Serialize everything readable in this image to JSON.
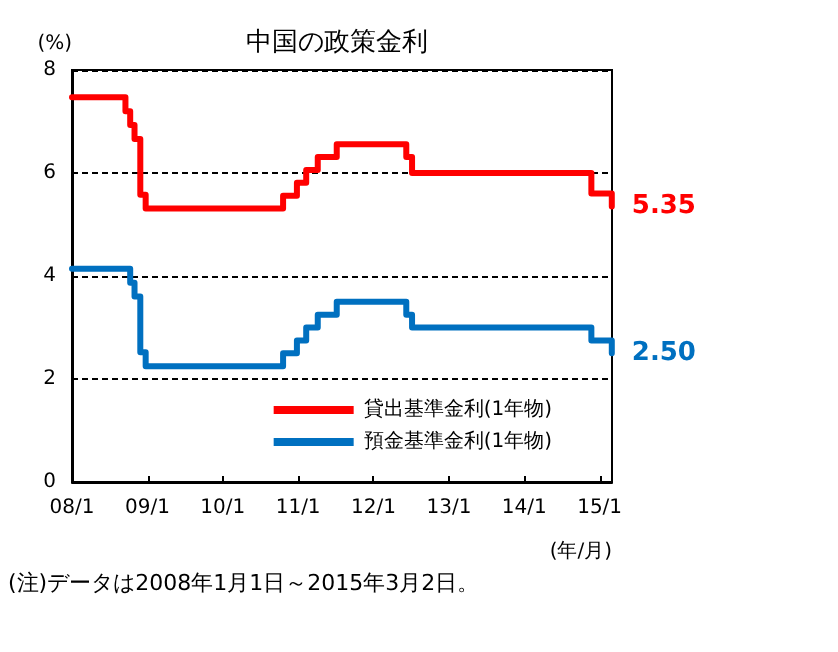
{
  "chart_data": {
    "type": "step",
    "title": "中国の政策金利",
    "ylabel": "(%)",
    "xlabel": "(年/月)",
    "annotations": [
      "(注)データは2008年1月1日～2015年3月2日。"
    ],
    "x": [
      "2008-01-01",
      "2008-09-16",
      "2008-10-09",
      "2008-10-30",
      "2008-11-27",
      "2008-12-23",
      "2010-10-20",
      "2010-12-26",
      "2011-02-09",
      "2011-04-06",
      "2011-07-07",
      "2012-06-08",
      "2012-07-06",
      "2014-11-22",
      "2015-03-01"
    ],
    "series": [
      {
        "name": "貸出基準金利(1年物)",
        "color": "#ff0000",
        "values": [
          7.47,
          7.2,
          6.93,
          6.66,
          5.58,
          5.31,
          5.56,
          5.81,
          6.06,
          6.31,
          6.56,
          6.31,
          6.0,
          5.6,
          5.35
        ],
        "value_labels": [
          null,
          null,
          null,
          null,
          null,
          null,
          null,
          null,
          null,
          null,
          null,
          null,
          null,
          null,
          "5.35"
        ]
      },
      {
        "name": "預金基準金利(1年物)",
        "color": "#0070c0",
        "values": [
          4.14,
          4.14,
          3.87,
          3.6,
          2.52,
          2.25,
          2.5,
          2.75,
          3.0,
          3.25,
          3.5,
          3.25,
          3.0,
          2.75,
          2.5
        ],
        "value_labels": [
          null,
          null,
          null,
          null,
          null,
          null,
          null,
          null,
          null,
          null,
          null,
          null,
          null,
          null,
          "2.50"
        ]
      }
    ],
    "xlim": [
      "2008-01-01",
      "2015-03-02"
    ],
    "xticks": [
      {
        "value": "2008-01-01",
        "label": "08/1"
      },
      {
        "value": "2009-01-01",
        "label": "09/1"
      },
      {
        "value": "2010-01-01",
        "label": "10/1"
      },
      {
        "value": "2011-01-01",
        "label": "11/1"
      },
      {
        "value": "2012-01-01",
        "label": "12/1"
      },
      {
        "value": "2013-01-01",
        "label": "13/1"
      },
      {
        "value": "2014-01-01",
        "label": "14/1"
      },
      {
        "value": "2015-01-01",
        "label": "15/1"
      }
    ],
    "ylim": [
      0,
      8
    ],
    "yticks": [
      0,
      2,
      4,
      6,
      8
    ],
    "grid": "y",
    "legend": "bottom right",
    "marker": "none",
    "line_style": "solid"
  }
}
